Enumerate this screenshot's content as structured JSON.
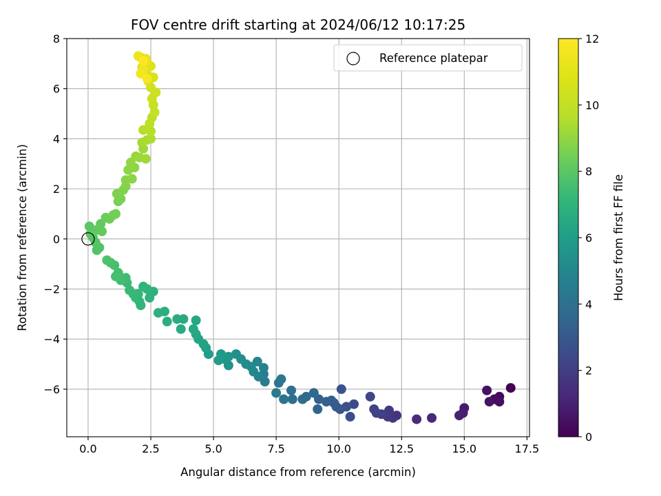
{
  "chart_data": {
    "type": "scatter",
    "title": "FOV centre drift starting at 2024/06/12 10:17:25",
    "xlabel": "Angular distance from reference (arcmin)",
    "ylabel": "Rotation from reference (arcmin)",
    "xlim": [
      -0.85,
      17.6
    ],
    "ylim": [
      -7.9,
      8
    ],
    "x_ticks": [
      0.0,
      2.5,
      5.0,
      7.5,
      10.0,
      12.5,
      15.0,
      17.5
    ],
    "x_tick_labels": [
      "0.0",
      "2.5",
      "5.0",
      "7.5",
      "10.0",
      "12.5",
      "15.0",
      "17.5"
    ],
    "y_ticks": [
      -6,
      -4,
      -2,
      0,
      2,
      4,
      6,
      8
    ],
    "y_tick_labels": [
      "−6",
      "−4",
      "−2",
      "0",
      "2",
      "4",
      "6",
      "8"
    ],
    "grid": true,
    "legend": {
      "position": "top-right",
      "entries": [
        "Reference platepar"
      ]
    },
    "reference_point": {
      "x": 0,
      "y": 0
    },
    "colorbar": {
      "label": "Hours from first FF file",
      "colormap": "viridis",
      "range": [
        0,
        12
      ],
      "ticks": [
        0,
        2,
        4,
        6,
        8,
        10,
        12
      ],
      "tick_labels": [
        "0",
        "2",
        "4",
        "6",
        "8",
        "10",
        "12"
      ]
    },
    "series": [
      {
        "points": [
          [
            16.85,
            -5.95,
            0.0
          ],
          [
            16.4,
            -6.3,
            0.2
          ],
          [
            16.2,
            -6.4,
            0.3
          ],
          [
            16.4,
            -6.5,
            0.4
          ],
          [
            15.9,
            -6.05,
            0.5
          ],
          [
            16.0,
            -6.5,
            0.6
          ],
          [
            15.0,
            -6.75,
            0.8
          ],
          [
            14.95,
            -6.95,
            0.9
          ],
          [
            14.8,
            -7.05,
            1.0
          ],
          [
            13.7,
            -7.15,
            1.2
          ],
          [
            13.1,
            -7.2,
            1.4
          ],
          [
            12.3,
            -7.05,
            1.6
          ],
          [
            12.15,
            -7.15,
            1.7
          ],
          [
            12.0,
            -6.85,
            1.8
          ],
          [
            11.95,
            -7.1,
            1.9
          ],
          [
            11.7,
            -7.0,
            2.0
          ],
          [
            11.5,
            -6.95,
            2.1
          ],
          [
            11.4,
            -6.8,
            2.2
          ],
          [
            11.25,
            -6.3,
            2.3
          ],
          [
            10.6,
            -6.6,
            2.5
          ],
          [
            10.45,
            -7.1,
            2.6
          ],
          [
            10.3,
            -6.7,
            2.7
          ],
          [
            10.1,
            -6.0,
            2.8
          ],
          [
            10.05,
            -6.8,
            2.9
          ],
          [
            9.9,
            -6.7,
            3.0
          ],
          [
            9.8,
            -6.55,
            3.1
          ],
          [
            9.7,
            -6.45,
            3.2
          ],
          [
            9.5,
            -6.5,
            3.3
          ],
          [
            9.2,
            -6.4,
            3.4
          ],
          [
            9.15,
            -6.8,
            3.5
          ],
          [
            9.0,
            -6.15,
            3.6
          ],
          [
            8.7,
            -6.3,
            3.7
          ],
          [
            8.55,
            -6.4,
            3.8
          ],
          [
            8.15,
            -6.4,
            3.9
          ],
          [
            8.1,
            -6.05,
            4.0
          ],
          [
            7.8,
            -6.4,
            4.1
          ],
          [
            7.6,
            -5.75,
            4.2
          ],
          [
            7.7,
            -5.6,
            4.3
          ],
          [
            7.5,
            -6.15,
            4.4
          ],
          [
            7.05,
            -5.7,
            4.5
          ],
          [
            7.0,
            -5.4,
            4.6
          ],
          [
            7.0,
            -5.15,
            4.7
          ],
          [
            6.8,
            -5.5,
            4.8
          ],
          [
            6.75,
            -4.9,
            4.9
          ],
          [
            6.6,
            -5.3,
            5.0
          ],
          [
            6.5,
            -5.1,
            5.1
          ],
          [
            6.3,
            -5.0,
            5.2
          ],
          [
            6.1,
            -4.8,
            5.3
          ],
          [
            5.9,
            -4.6,
            5.4
          ],
          [
            5.6,
            -5.05,
            5.5
          ],
          [
            5.6,
            -4.7,
            5.6
          ],
          [
            5.45,
            -4.8,
            5.7
          ],
          [
            5.3,
            -4.6,
            5.8
          ],
          [
            5.2,
            -4.85,
            5.9
          ],
          [
            4.8,
            -4.6,
            6.0
          ],
          [
            4.7,
            -4.35,
            6.1
          ],
          [
            4.6,
            -4.2,
            6.2
          ],
          [
            4.4,
            -4.0,
            6.3
          ],
          [
            4.3,
            -3.8,
            6.4
          ],
          [
            4.3,
            -3.25,
            6.4
          ],
          [
            4.2,
            -3.6,
            6.5
          ],
          [
            3.8,
            -3.2,
            6.55
          ],
          [
            3.7,
            -3.6,
            6.6
          ],
          [
            3.55,
            -3.2,
            6.65
          ],
          [
            3.15,
            -3.3,
            6.7
          ],
          [
            3.05,
            -2.9,
            6.75
          ],
          [
            2.8,
            -2.95,
            6.8
          ],
          [
            2.6,
            -2.1,
            6.85
          ],
          [
            2.45,
            -2.35,
            6.9
          ],
          [
            2.35,
            -2.0,
            6.95
          ],
          [
            2.2,
            -1.9,
            7.0
          ],
          [
            2.1,
            -2.65,
            7.05
          ],
          [
            2.05,
            -2.5,
            7.1
          ],
          [
            2.0,
            -2.2,
            7.15
          ],
          [
            1.9,
            -2.35,
            7.2
          ],
          [
            1.8,
            -2.2,
            7.25
          ],
          [
            1.65,
            -2.05,
            7.3
          ],
          [
            1.55,
            -1.75,
            7.35
          ],
          [
            1.5,
            -1.55,
            7.4
          ],
          [
            1.3,
            -1.65,
            7.45
          ],
          [
            1.2,
            -1.35,
            7.5
          ],
          [
            1.1,
            -1.5,
            7.55
          ],
          [
            1.05,
            -1.05,
            7.6
          ],
          [
            0.9,
            -0.95,
            7.65
          ],
          [
            0.75,
            -0.85,
            7.7
          ],
          [
            0.45,
            -0.35,
            7.75
          ],
          [
            0.35,
            -0.45,
            7.8
          ],
          [
            0.3,
            -0.15,
            7.85
          ],
          [
            0.2,
            0.05,
            7.9
          ],
          [
            0.1,
            0.2,
            7.95
          ],
          [
            0.05,
            0.5,
            8.0
          ],
          [
            0.15,
            0.25,
            8.05
          ],
          [
            0.3,
            0.35,
            8.1
          ],
          [
            0.5,
            0.6,
            8.15
          ],
          [
            0.55,
            0.3,
            8.2
          ],
          [
            0.7,
            0.85,
            8.3
          ],
          [
            0.85,
            0.8,
            8.35
          ],
          [
            1.0,
            0.95,
            8.4
          ],
          [
            1.1,
            1.0,
            8.45
          ],
          [
            1.2,
            1.5,
            8.55
          ],
          [
            1.3,
            1.6,
            8.6
          ],
          [
            1.15,
            1.8,
            8.65
          ],
          [
            1.4,
            1.95,
            8.7
          ],
          [
            1.5,
            2.1,
            8.75
          ],
          [
            1.5,
            2.35,
            8.8
          ],
          [
            1.75,
            2.4,
            8.85
          ],
          [
            1.6,
            2.75,
            8.9
          ],
          [
            1.85,
            2.85,
            8.95
          ],
          [
            1.7,
            3.05,
            9.0
          ],
          [
            1.9,
            3.3,
            9.1
          ],
          [
            2.05,
            3.25,
            9.15
          ],
          [
            2.2,
            3.6,
            9.2
          ],
          [
            2.3,
            3.2,
            9.25
          ],
          [
            2.15,
            3.85,
            9.3
          ],
          [
            2.35,
            3.95,
            9.4
          ],
          [
            2.5,
            4.0,
            9.5
          ],
          [
            2.2,
            4.35,
            9.6
          ],
          [
            2.5,
            4.3,
            9.7
          ],
          [
            2.45,
            4.6,
            9.8
          ],
          [
            2.55,
            4.85,
            9.9
          ],
          [
            2.65,
            5.05,
            10.0
          ],
          [
            2.6,
            5.35,
            10.1
          ],
          [
            2.55,
            5.6,
            10.2
          ],
          [
            2.7,
            5.85,
            10.3
          ],
          [
            2.5,
            6.05,
            10.4
          ],
          [
            2.4,
            6.3,
            10.5
          ],
          [
            2.6,
            6.45,
            10.6
          ],
          [
            2.3,
            6.6,
            10.7
          ],
          [
            2.5,
            6.9,
            10.8
          ],
          [
            2.15,
            6.85,
            10.9
          ],
          [
            2.35,
            7.05,
            11.0
          ],
          [
            2.1,
            7.25,
            11.1
          ],
          [
            2.3,
            7.2,
            11.2
          ],
          [
            2.0,
            7.3,
            11.3
          ],
          [
            2.2,
            6.75,
            11.4
          ],
          [
            2.1,
            6.6,
            11.6
          ],
          [
            2.35,
            6.4,
            11.8
          ],
          [
            2.2,
            7.1,
            12.0
          ]
        ]
      }
    ]
  }
}
